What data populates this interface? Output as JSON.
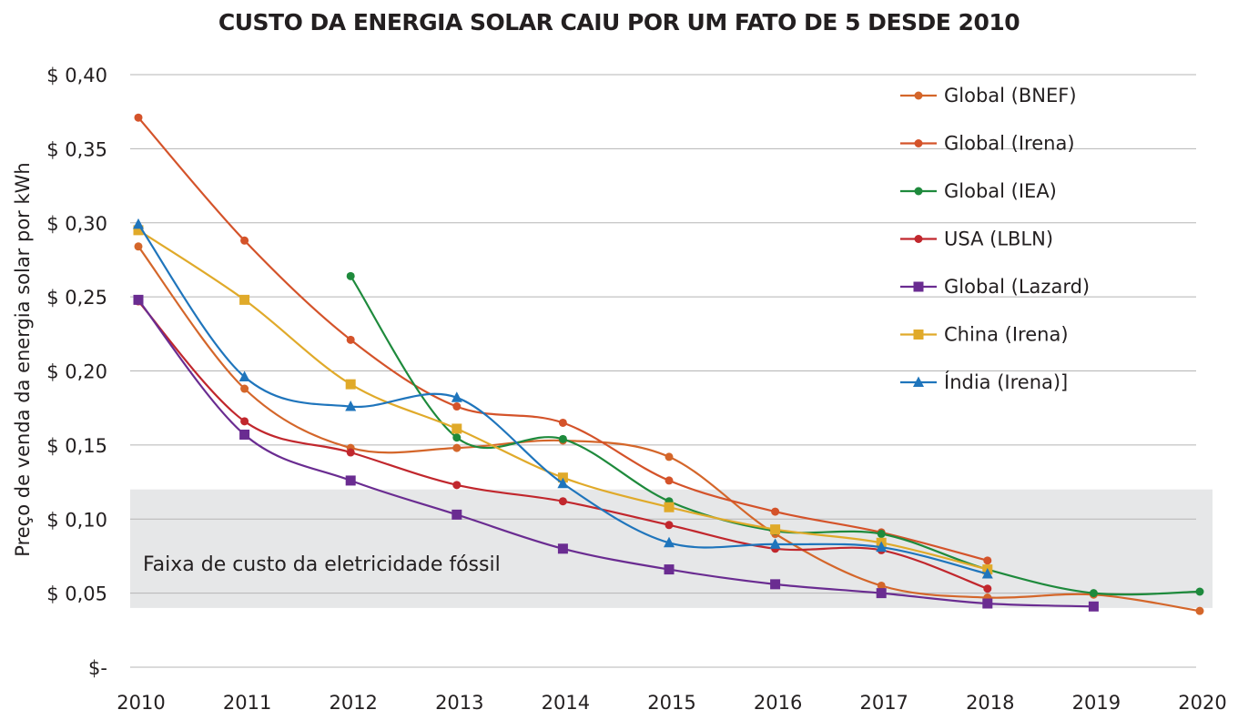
{
  "chart_data": {
    "type": "line",
    "title": "CUSTO DA ENERGIA SOLAR CAIU POR UM FATO DE 5 DESDE 2010",
    "ylabel": "Preço de venda da energia solar por kWh",
    "xlabel": "",
    "x": [
      2010,
      2011,
      2012,
      2013,
      2014,
      2015,
      2016,
      2017,
      2018,
      2019,
      2020
    ],
    "x_tick_labels": [
      "2010",
      "2011",
      "2012",
      "2013",
      "2014",
      "2015",
      "2016",
      "2017",
      "2018",
      "2019",
      "2020"
    ],
    "y_ticks": [
      0,
      0.05,
      0.1,
      0.15,
      0.2,
      0.25,
      0.3,
      0.35,
      0.4
    ],
    "y_tick_labels": [
      "$-",
      "$ 0,05",
      "$ 0,10",
      "$ 0,15",
      "$ 0,20",
      "$ 0,25",
      "$ 0,30",
      "$ 0,35",
      "$ 0,40"
    ],
    "ylim": [
      0,
      0.4
    ],
    "xlim": [
      2010,
      2020
    ],
    "grid": "horizontal",
    "legend_position": "top-right",
    "band": {
      "y_range": [
        0.04,
        0.12
      ],
      "label": "Faixa de custo da eletricidade fóssil",
      "color": "#e6e7e8"
    },
    "series": [
      {
        "name": "Global (BNEF)",
        "color": "#d4662a",
        "marker": "circle",
        "x": [
          2010,
          2011,
          2012,
          2013,
          2014,
          2015,
          2016,
          2017,
          2018,
          2019,
          2020
        ],
        "values": [
          0.284,
          0.188,
          0.148,
          0.148,
          0.153,
          0.142,
          0.09,
          0.055,
          0.047,
          0.049,
          0.038
        ]
      },
      {
        "name": "Global (Irena)",
        "color": "#d4532a",
        "marker": "circle",
        "x": [
          2010,
          2011,
          2012,
          2013,
          2014,
          2015,
          2016,
          2017,
          2018
        ],
        "values": [
          0.371,
          0.288,
          0.221,
          0.176,
          0.165,
          0.126,
          0.105,
          0.091,
          0.072
        ]
      },
      {
        "name": "Global (IEA)",
        "color": "#1e8a3c",
        "marker": "circle",
        "x": [
          2012,
          2013,
          2014,
          2015,
          2016,
          2017,
          2018,
          2019,
          2020
        ],
        "values": [
          0.264,
          0.155,
          0.154,
          0.112,
          0.092,
          0.09,
          0.066,
          0.05,
          0.051
        ]
      },
      {
        "name": "USA (LBLN)",
        "color": "#c1272d",
        "marker": "circle",
        "x": [
          2010,
          2011,
          2012,
          2013,
          2014,
          2015,
          2016,
          2017,
          2018
        ],
        "values": [
          0.247,
          0.166,
          0.145,
          0.123,
          0.112,
          0.096,
          0.08,
          0.079,
          0.053
        ]
      },
      {
        "name": "Global (Lazard)",
        "color": "#6a2c91",
        "marker": "square",
        "x": [
          2010,
          2011,
          2012,
          2013,
          2014,
          2015,
          2016,
          2017,
          2018,
          2019
        ],
        "values": [
          0.248,
          0.157,
          0.126,
          0.103,
          0.08,
          0.066,
          0.056,
          0.05,
          0.043,
          0.041
        ]
      },
      {
        "name": "China (Irena)",
        "color": "#e0aa2a",
        "marker": "square",
        "x": [
          2010,
          2011,
          2012,
          2013,
          2014,
          2015,
          2016,
          2017,
          2018
        ],
        "values": [
          0.295,
          0.248,
          0.191,
          0.161,
          0.128,
          0.108,
          0.093,
          0.084,
          0.066
        ]
      },
      {
        "name": "Índia (Irena)]",
        "color": "#1f75bc",
        "marker": "triangle",
        "x": [
          2010,
          2011,
          2012,
          2013,
          2014,
          2015,
          2016,
          2017,
          2018
        ],
        "values": [
          0.299,
          0.196,
          0.176,
          0.182,
          0.124,
          0.084,
          0.083,
          0.081,
          0.063
        ]
      }
    ]
  }
}
